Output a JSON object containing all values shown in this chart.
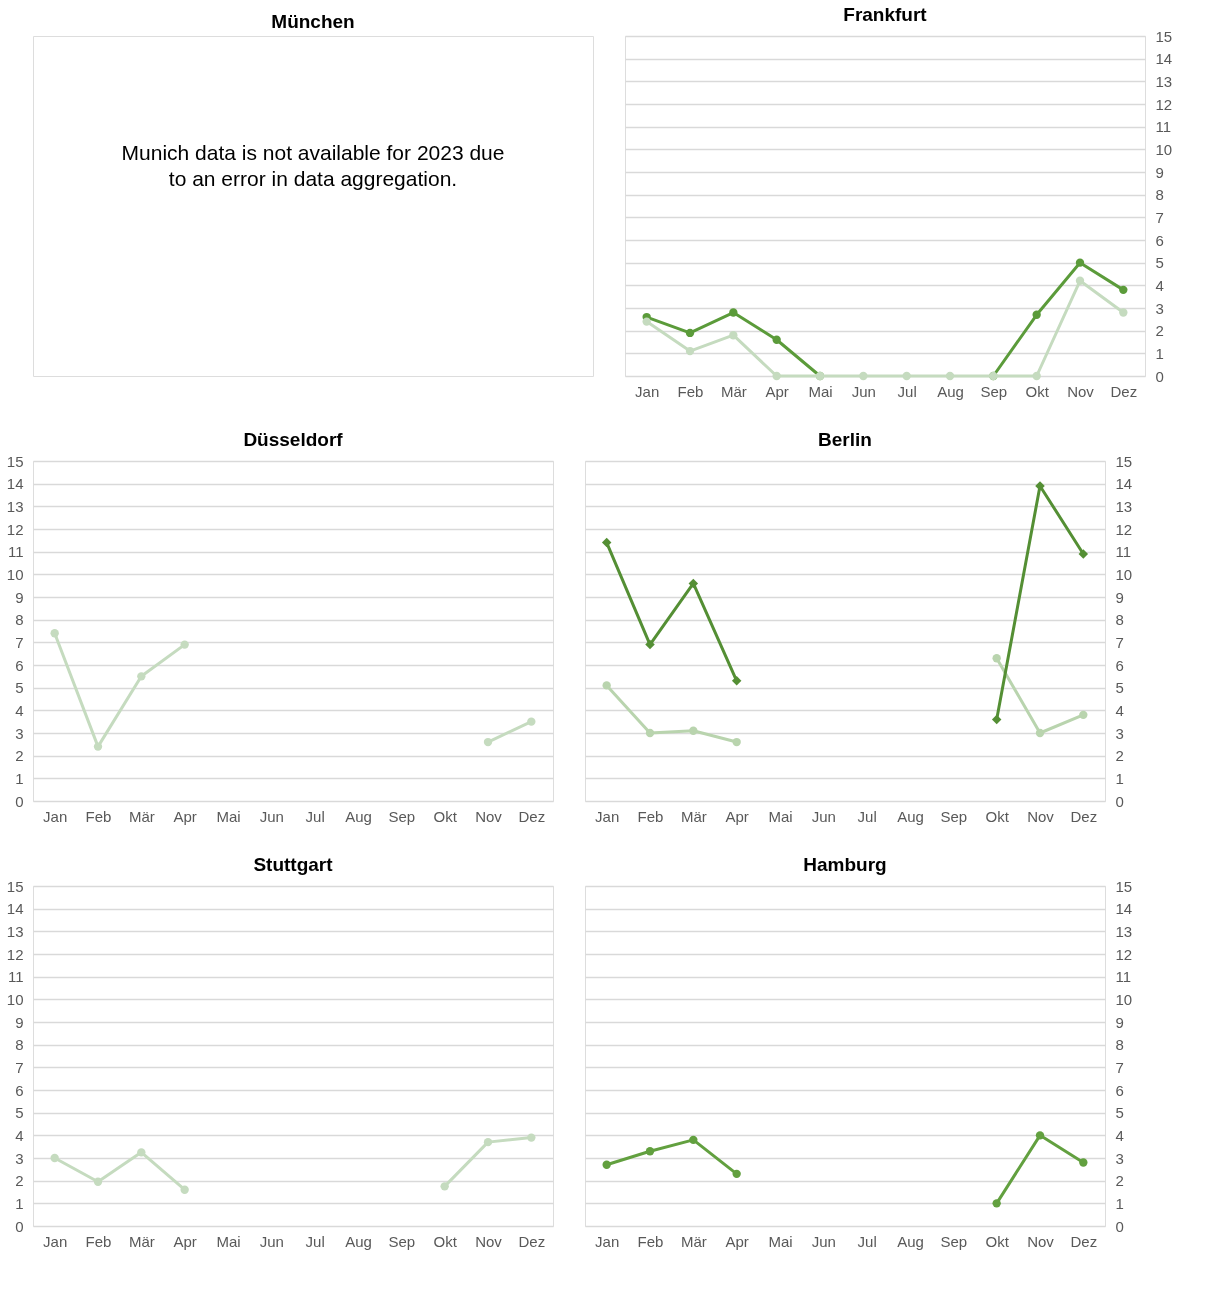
{
  "chart_data": [
    {
      "type": "other",
      "title": "München",
      "annotations": [
        "Munich data is not available for 2023 due to an error in data aggregation."
      ]
    },
    {
      "type": "line",
      "title": "Frankfurt",
      "categories": [
        "Jan",
        "Feb",
        "Mär",
        "Apr",
        "Mai",
        "Jun",
        "Jul",
        "Aug",
        "Sep",
        "Okt",
        "Nov",
        "Dez"
      ],
      "ylim": [
        0,
        15
      ],
      "yticks": [
        0,
        1,
        2,
        3,
        4,
        5,
        6,
        7,
        8,
        9,
        10,
        11,
        12,
        13,
        14,
        15
      ],
      "grid": "y",
      "marker": "circle",
      "series": [
        {
          "color": "#5b9b3a",
          "values": [
            2.6,
            1.9,
            2.8,
            1.6,
            0,
            null,
            null,
            null,
            0,
            2.7,
            5.0,
            3.8
          ]
        },
        {
          "color": "#c5dbbf",
          "values": [
            2.4,
            1.1,
            1.8,
            0,
            0,
            0,
            0,
            0,
            0,
            0,
            4.2,
            2.8
          ]
        }
      ]
    },
    {
      "type": "line",
      "title": "Düsseldorf",
      "categories": [
        "Jan",
        "Feb",
        "Mär",
        "Apr",
        "Mai",
        "Jun",
        "Jul",
        "Aug",
        "Sep",
        "Okt",
        "Nov",
        "Dez"
      ],
      "ylim": [
        0,
        15
      ],
      "yticks": [
        0,
        1,
        2,
        3,
        4,
        5,
        6,
        7,
        8,
        9,
        10,
        11,
        12,
        13,
        14,
        15
      ],
      "grid": "y",
      "marker": "circle",
      "series": [
        {
          "color": "#c5dbbf",
          "values": [
            7.4,
            2.4,
            5.5,
            6.9,
            null,
            null,
            null,
            null,
            null,
            null,
            2.6,
            3.5
          ]
        }
      ]
    },
    {
      "type": "line",
      "title": "Berlin",
      "categories": [
        "Jan",
        "Feb",
        "Mär",
        "Apr",
        "Mai",
        "Jun",
        "Jul",
        "Aug",
        "Sep",
        "Okt",
        "Nov",
        "Dez"
      ],
      "ylim": [
        0,
        15
      ],
      "yticks": [
        0,
        1,
        2,
        3,
        4,
        5,
        6,
        7,
        8,
        9,
        10,
        11,
        12,
        13,
        14,
        15
      ],
      "grid": "y",
      "marker": "circle",
      "series": [
        {
          "color": "#b9d4ae",
          "values": [
            5.1,
            3.0,
            3.1,
            2.6,
            null,
            null,
            null,
            null,
            null,
            6.3,
            3.0,
            3.8
          ]
        },
        {
          "color": "#548f34",
          "marker": "diamond",
          "values": [
            11.4,
            6.9,
            9.6,
            5.3,
            null,
            null,
            null,
            null,
            null,
            3.6,
            13.9,
            10.9
          ]
        }
      ]
    },
    {
      "type": "line",
      "title": "Stuttgart",
      "categories": [
        "Jan",
        "Feb",
        "Mär",
        "Apr",
        "Mai",
        "Jun",
        "Jul",
        "Aug",
        "Sep",
        "Okt",
        "Nov",
        "Dez"
      ],
      "ylim": [
        0,
        15
      ],
      "yticks": [
        0,
        1,
        2,
        3,
        4,
        5,
        6,
        7,
        8,
        9,
        10,
        11,
        12,
        13,
        14,
        15
      ],
      "grid": "y",
      "marker": "circle",
      "series": [
        {
          "color": "#c5dbbf",
          "values": [
            3.0,
            1.95,
            3.25,
            1.6,
            null,
            null,
            null,
            null,
            null,
            1.75,
            3.7,
            3.9
          ]
        }
      ]
    },
    {
      "type": "line",
      "title": "Hamburg",
      "categories": [
        "Jan",
        "Feb",
        "Mär",
        "Apr",
        "Mai",
        "Jun",
        "Jul",
        "Aug",
        "Sep",
        "Okt",
        "Nov",
        "Dez"
      ],
      "ylim": [
        0,
        15
      ],
      "yticks": [
        0,
        1,
        2,
        3,
        4,
        5,
        6,
        7,
        8,
        9,
        10,
        11,
        12,
        13,
        14,
        15
      ],
      "grid": "y",
      "marker": "circle",
      "series": [
        {
          "color": "#62a03f",
          "values": [
            2.7,
            3.3,
            3.8,
            2.3,
            null,
            null,
            null,
            null,
            null,
            1.0,
            4.0,
            2.8
          ]
        }
      ]
    }
  ]
}
